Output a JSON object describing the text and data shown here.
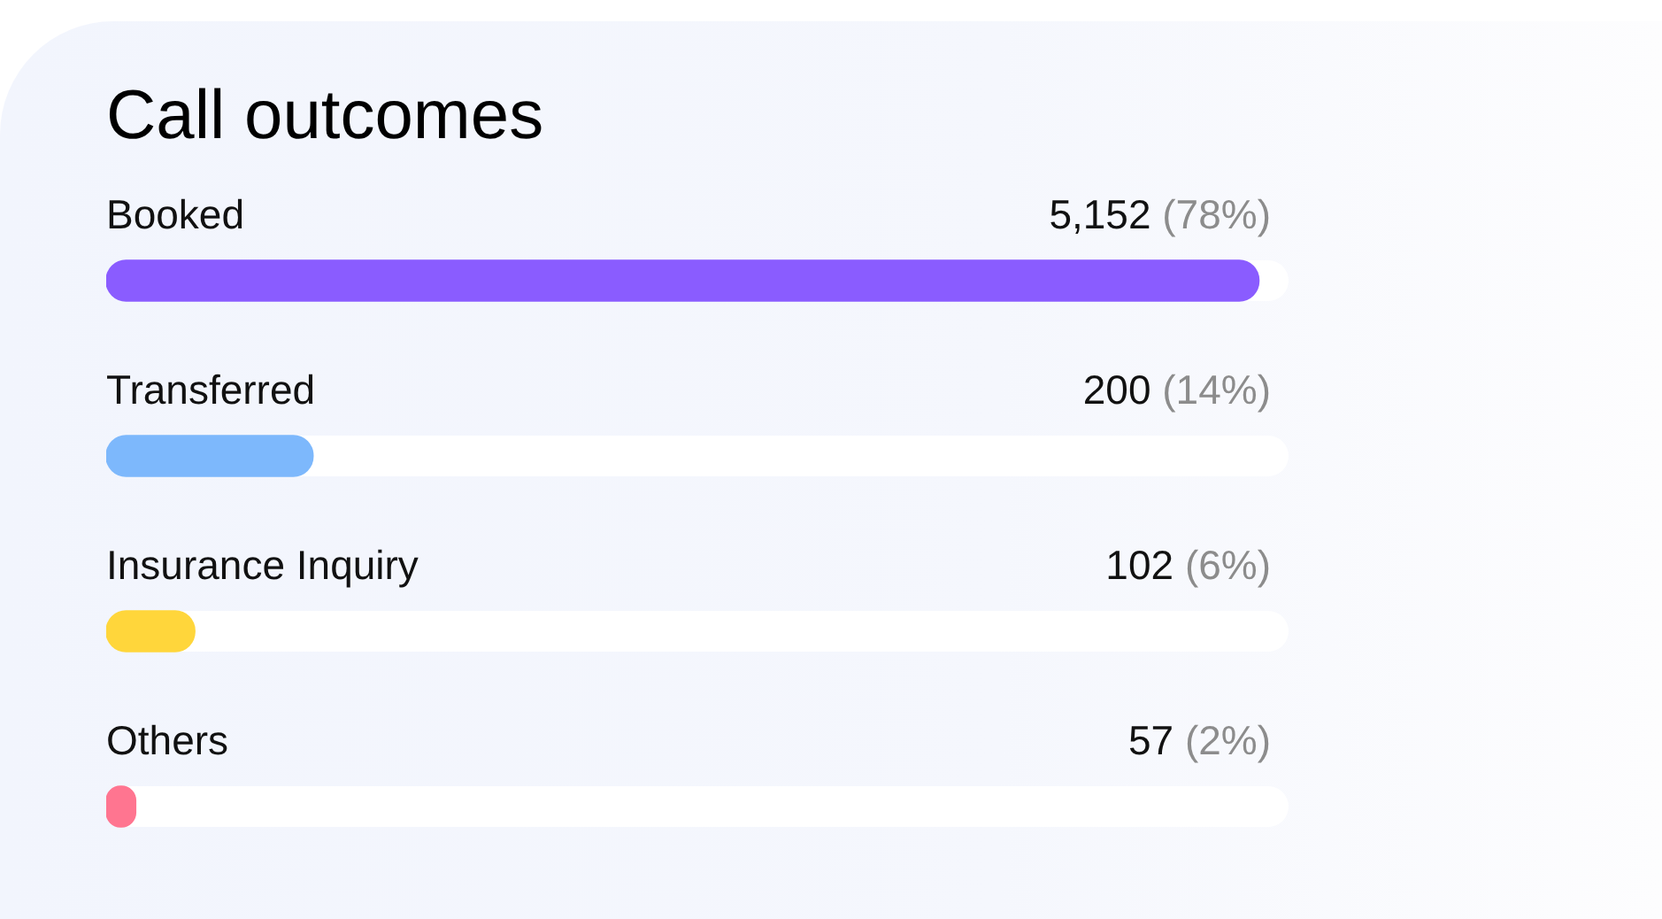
{
  "chart_data": {
    "type": "bar",
    "orientation": "horizontal",
    "title": "Call outcomes",
    "categories": [
      "Booked",
      "Transferred",
      "Insurance Inquiry",
      "Others"
    ],
    "values": [
      78,
      14,
      6,
      2
    ],
    "colors": [
      "#8a5cff",
      "#7db8fc",
      "#ffd63b",
      "#ff7590"
    ],
    "value_labels": [
      "5,152 (78%)",
      "200 (14%)",
      "102 (6%)",
      "57 (2%)"
    ],
    "tick_labels": "y"
  }
}
